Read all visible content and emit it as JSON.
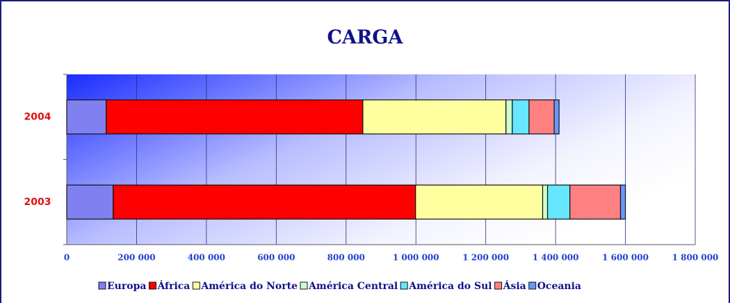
{
  "chart_data": {
    "type": "stacked-barh",
    "title": "CARGA",
    "categories": [
      "2004",
      "2003"
    ],
    "series": [
      {
        "name": "Europa",
        "color": "#8080f0",
        "values": [
          113000,
          133000
        ]
      },
      {
        "name": "África",
        "color": "#ff0000",
        "values": [
          735000,
          866000
        ]
      },
      {
        "name": "América do Norte",
        "color": "#ffffa0",
        "values": [
          410000,
          364000
        ]
      },
      {
        "name": "América Central",
        "color": "#ccffcc",
        "values": [
          18000,
          14000
        ]
      },
      {
        "name": "América do Sul",
        "color": "#66e6ff",
        "values": [
          48000,
          64000
        ]
      },
      {
        "name": "Ásia",
        "color": "#ff8080",
        "values": [
          72000,
          145000
        ]
      },
      {
        "name": "Oceania",
        "color": "#6699ff",
        "values": [
          14000,
          14000
        ]
      }
    ],
    "xlim": [
      0,
      1800000
    ],
    "xticks": [
      0,
      {
        "value": 200000,
        "label": "200 000"
      },
      {
        "value": 400000,
        "label": "400 000"
      },
      {
        "value": 600000,
        "label": "600 000"
      },
      {
        "value": 800000,
        "label": "800 000"
      },
      {
        "value": 1000000,
        "label": "1 000 000"
      },
      {
        "value": 1200000,
        "label": "1 200 000"
      },
      {
        "value": 1400000,
        "label": "1 400 000"
      },
      {
        "value": 1600000,
        "label": "1 600 000"
      },
      {
        "value": 1800000,
        "label": "1 800 000"
      }
    ],
    "grid": true,
    "legend": "bottom"
  }
}
